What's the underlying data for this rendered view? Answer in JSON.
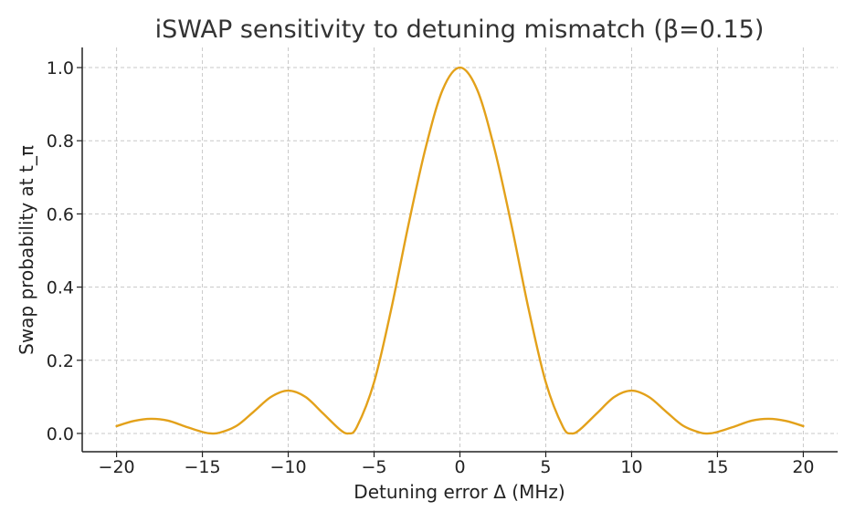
{
  "chart_data": {
    "type": "line",
    "title": "iSWAP sensitivity to detuning mismatch (β=0.15)",
    "xlabel": "Detuning error Δ (MHz)",
    "ylabel": "Swap probability at t_π",
    "xlim": [
      -22,
      22
    ],
    "ylim": [
      -0.05,
      1.055
    ],
    "x_ticks": [
      -20,
      -15,
      -10,
      -5,
      0,
      5,
      10,
      15,
      20
    ],
    "x_tick_labels": [
      "−20",
      "−15",
      "−10",
      "−5",
      "0",
      "5",
      "10",
      "15",
      "20"
    ],
    "y_ticks": [
      0.0,
      0.2,
      0.4,
      0.6,
      0.8,
      1.0
    ],
    "y_tick_labels": [
      "0.0",
      "0.2",
      "0.4",
      "0.6",
      "0.8",
      "1.0"
    ],
    "grid": true,
    "color": "#e3a11a",
    "series": [
      {
        "x": [
          -20,
          -19,
          -18,
          -17,
          -16,
          -15,
          -14.5,
          -14,
          -13,
          -12,
          -11,
          -10,
          -9,
          -8,
          -7,
          -6.5,
          -6,
          -5,
          -4,
          -3,
          -2,
          -1,
          0,
          1,
          2,
          3,
          4,
          5,
          6,
          6.5,
          7,
          8,
          9,
          10,
          11,
          12,
          13,
          14,
          14.5,
          15,
          16,
          17,
          18,
          19,
          20
        ],
        "values": [
          0.02,
          0.034,
          0.04,
          0.035,
          0.019,
          0.004,
          0.0,
          0.002,
          0.021,
          0.06,
          0.1,
          0.117,
          0.1,
          0.056,
          0.011,
          0.0,
          0.018,
          0.14,
          0.34,
          0.57,
          0.78,
          0.94,
          1.0,
          0.94,
          0.78,
          0.57,
          0.34,
          0.14,
          0.018,
          0.0,
          0.011,
          0.056,
          0.1,
          0.117,
          0.1,
          0.06,
          0.021,
          0.002,
          0.0,
          0.004,
          0.019,
          0.035,
          0.04,
          0.034,
          0.02
        ]
      }
    ]
  }
}
